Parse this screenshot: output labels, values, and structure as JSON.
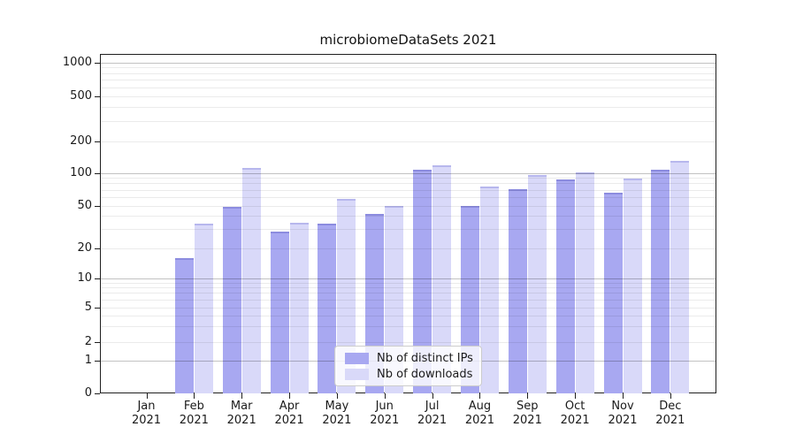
{
  "title": "microbiomeDataSets 2021",
  "chart_data": {
    "type": "bar",
    "title": "microbiomeDataSets 2021",
    "x_categories": [
      "Jan 2021",
      "Feb 2021",
      "Mar 2021",
      "Apr 2021",
      "May 2021",
      "Jun 2021",
      "Jul 2021",
      "Aug 2021",
      "Sep 2021",
      "Oct 2021",
      "Nov 2021",
      "Dec 2021"
    ],
    "series": [
      {
        "name": "Nb of distinct IPs",
        "color": "#a8a8f1",
        "values": [
          0,
          16,
          49,
          29,
          34,
          42,
          107,
          50,
          71,
          88,
          66,
          109
        ]
      },
      {
        "name": "Nb of downloads",
        "color": "#d9d9f9",
        "values": [
          0,
          34,
          113,
          35,
          58,
          50,
          118,
          75,
          97,
          102,
          90,
          131
        ]
      }
    ],
    "yscale": "symlog",
    "yticks": [
      0,
      1,
      2,
      5,
      10,
      20,
      50,
      100,
      200,
      500,
      1000
    ],
    "ylim": [
      0,
      1400
    ],
    "xlabel": "",
    "ylabel": "",
    "grid": true,
    "grid_on_top_of_bars": true,
    "legend_position": "lower center"
  },
  "legend": {
    "items": [
      {
        "label": "Nb of distinct IPs",
        "color": "#a8a8f1"
      },
      {
        "label": "Nb of downloads",
        "color": "#d9d9f9"
      }
    ]
  }
}
